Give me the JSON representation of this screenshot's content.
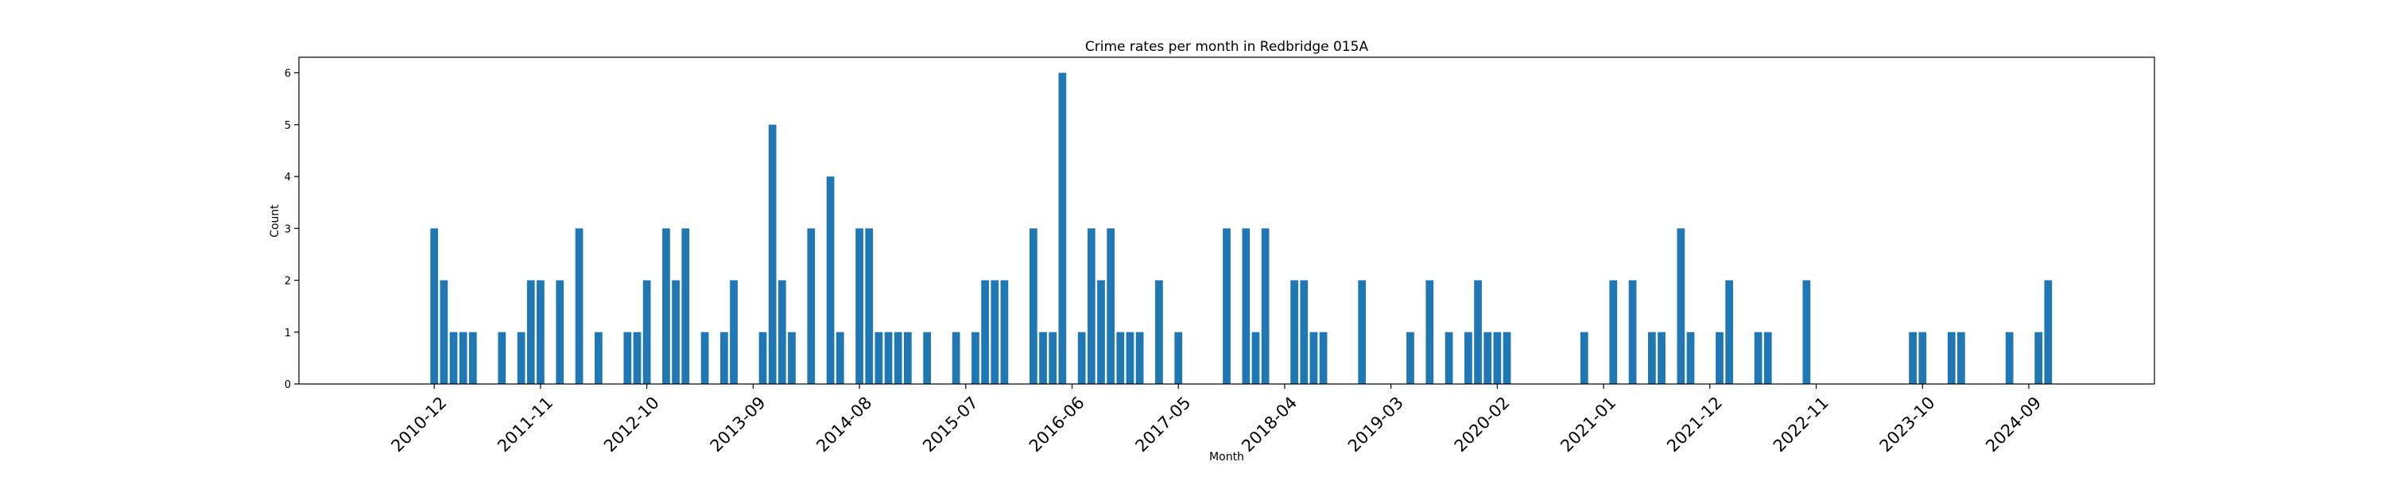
{
  "chart_data": {
    "type": "bar",
    "title": "Crime rates per month in Redbridge 015A",
    "xlabel": "Month",
    "ylabel": "Count",
    "ylim": [
      0,
      6.3
    ],
    "yticks": [
      0,
      1,
      2,
      3,
      4,
      5,
      6
    ],
    "xlim": [
      "2009-10",
      "2025-10"
    ],
    "xticks": [
      "2010-12",
      "2011-11",
      "2012-10",
      "2013-09",
      "2014-08",
      "2015-07",
      "2016-06",
      "2017-05",
      "2018-04",
      "2019-03",
      "2020-02",
      "2021-01",
      "2021-12",
      "2022-11",
      "2023-10",
      "2024-09"
    ],
    "color": "#1f77b4",
    "grid": false,
    "points": [
      {
        "x": "2010-12",
        "y": 3
      },
      {
        "x": "2011-01",
        "y": 2
      },
      {
        "x": "2011-02",
        "y": 1
      },
      {
        "x": "2011-03",
        "y": 1
      },
      {
        "x": "2011-04",
        "y": 1
      },
      {
        "x": "2011-07",
        "y": 1
      },
      {
        "x": "2011-09",
        "y": 1
      },
      {
        "x": "2011-10",
        "y": 2
      },
      {
        "x": "2011-11",
        "y": 2
      },
      {
        "x": "2012-01",
        "y": 2
      },
      {
        "x": "2012-03",
        "y": 3
      },
      {
        "x": "2012-05",
        "y": 1
      },
      {
        "x": "2012-08",
        "y": 1
      },
      {
        "x": "2012-09",
        "y": 1
      },
      {
        "x": "2012-10",
        "y": 2
      },
      {
        "x": "2012-12",
        "y": 3
      },
      {
        "x": "2013-01",
        "y": 2
      },
      {
        "x": "2013-02",
        "y": 3
      },
      {
        "x": "2013-04",
        "y": 1
      },
      {
        "x": "2013-06",
        "y": 1
      },
      {
        "x": "2013-07",
        "y": 2
      },
      {
        "x": "2013-10",
        "y": 1
      },
      {
        "x": "2013-11",
        "y": 5
      },
      {
        "x": "2013-12",
        "y": 2
      },
      {
        "x": "2014-01",
        "y": 1
      },
      {
        "x": "2014-03",
        "y": 3
      },
      {
        "x": "2014-05",
        "y": 4
      },
      {
        "x": "2014-06",
        "y": 1
      },
      {
        "x": "2014-08",
        "y": 3
      },
      {
        "x": "2014-09",
        "y": 3
      },
      {
        "x": "2014-10",
        "y": 1
      },
      {
        "x": "2014-11",
        "y": 1
      },
      {
        "x": "2014-12",
        "y": 1
      },
      {
        "x": "2015-01",
        "y": 1
      },
      {
        "x": "2015-03",
        "y": 1
      },
      {
        "x": "2015-06",
        "y": 1
      },
      {
        "x": "2015-08",
        "y": 1
      },
      {
        "x": "2015-09",
        "y": 2
      },
      {
        "x": "2015-10",
        "y": 2
      },
      {
        "x": "2015-11",
        "y": 2
      },
      {
        "x": "2016-02",
        "y": 3
      },
      {
        "x": "2016-03",
        "y": 1
      },
      {
        "x": "2016-04",
        "y": 1
      },
      {
        "x": "2016-05",
        "y": 6
      },
      {
        "x": "2016-07",
        "y": 1
      },
      {
        "x": "2016-08",
        "y": 3
      },
      {
        "x": "2016-09",
        "y": 2
      },
      {
        "x": "2016-10",
        "y": 3
      },
      {
        "x": "2016-11",
        "y": 1
      },
      {
        "x": "2016-12",
        "y": 1
      },
      {
        "x": "2017-01",
        "y": 1
      },
      {
        "x": "2017-03",
        "y": 2
      },
      {
        "x": "2017-05",
        "y": 1
      },
      {
        "x": "2017-10",
        "y": 3
      },
      {
        "x": "2017-12",
        "y": 3
      },
      {
        "x": "2018-01",
        "y": 1
      },
      {
        "x": "2018-02",
        "y": 3
      },
      {
        "x": "2018-05",
        "y": 2
      },
      {
        "x": "2018-06",
        "y": 2
      },
      {
        "x": "2018-07",
        "y": 1
      },
      {
        "x": "2018-08",
        "y": 1
      },
      {
        "x": "2018-12",
        "y": 2
      },
      {
        "x": "2019-05",
        "y": 1
      },
      {
        "x": "2019-07",
        "y": 2
      },
      {
        "x": "2019-09",
        "y": 1
      },
      {
        "x": "2019-11",
        "y": 1
      },
      {
        "x": "2019-12",
        "y": 2
      },
      {
        "x": "2020-01",
        "y": 1
      },
      {
        "x": "2020-02",
        "y": 1
      },
      {
        "x": "2020-03",
        "y": 1
      },
      {
        "x": "2020-11",
        "y": 1
      },
      {
        "x": "2021-02",
        "y": 2
      },
      {
        "x": "2021-04",
        "y": 2
      },
      {
        "x": "2021-06",
        "y": 1
      },
      {
        "x": "2021-07",
        "y": 1
      },
      {
        "x": "2021-09",
        "y": 3
      },
      {
        "x": "2021-10",
        "y": 1
      },
      {
        "x": "2022-01",
        "y": 1
      },
      {
        "x": "2022-02",
        "y": 2
      },
      {
        "x": "2022-05",
        "y": 1
      },
      {
        "x": "2022-06",
        "y": 1
      },
      {
        "x": "2022-10",
        "y": 2
      },
      {
        "x": "2023-09",
        "y": 1
      },
      {
        "x": "2023-10",
        "y": 1
      },
      {
        "x": "2024-01",
        "y": 1
      },
      {
        "x": "2024-02",
        "y": 1
      },
      {
        "x": "2024-07",
        "y": 1
      },
      {
        "x": "2024-10",
        "y": 1
      },
      {
        "x": "2024-11",
        "y": 2
      }
    ]
  }
}
